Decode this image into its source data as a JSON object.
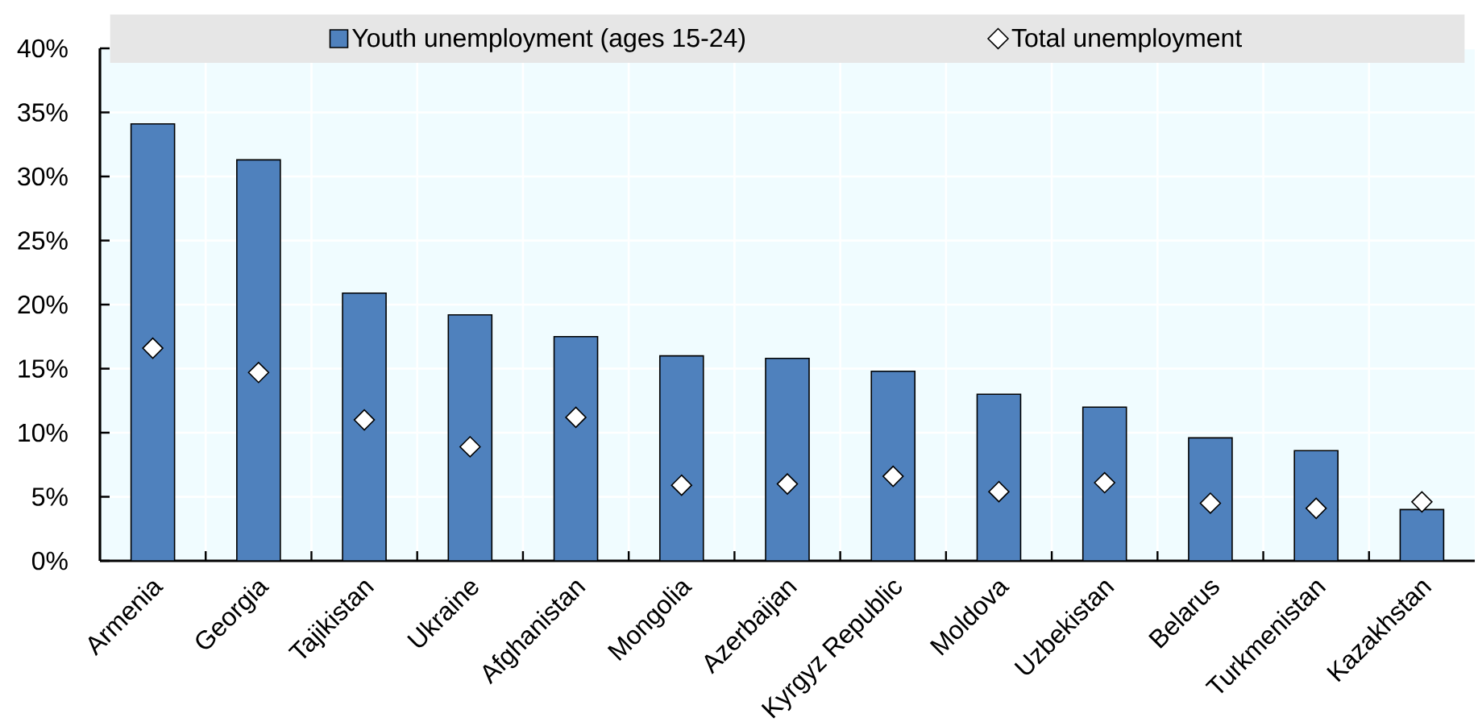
{
  "chart_data": {
    "type": "bar",
    "categories": [
      "Armenia",
      "Georgia",
      "Tajikistan",
      "Ukraine",
      "Afghanistan",
      "Mongolia",
      "Azerbaijan",
      "Kyrgyz Republic",
      "Moldova",
      "Uzbekistan",
      "Belarus",
      "Turkmenistan",
      "Kazakhstan"
    ],
    "series": [
      {
        "name": "Youth unemployment (ages 15-24)",
        "color": "#4f81bd",
        "values": [
          34.1,
          31.3,
          20.9,
          19.2,
          17.5,
          16.0,
          15.8,
          14.8,
          13.0,
          12.0,
          9.6,
          8.6,
          4.0
        ]
      },
      {
        "name": "Total unemployment",
        "type": "scatter",
        "marker": "diamond",
        "color": "#ffffff",
        "values": [
          16.6,
          14.7,
          11.0,
          8.9,
          11.2,
          5.9,
          6.0,
          6.6,
          5.4,
          6.1,
          4.5,
          4.1,
          4.6
        ]
      }
    ],
    "ylim": [
      0,
      40
    ],
    "yticks": [
      {
        "value": 0,
        "label": "0%"
      },
      {
        "value": 5,
        "label": "5%"
      },
      {
        "value": 10,
        "label": "10%"
      },
      {
        "value": 15,
        "label": "15%"
      },
      {
        "value": 20,
        "label": "20%"
      },
      {
        "value": 25,
        "label": "25%"
      },
      {
        "value": 30,
        "label": "30%"
      },
      {
        "value": 35,
        "label": "35%"
      },
      {
        "value": 40,
        "label": "40%"
      }
    ],
    "grid": true,
    "legend": "top"
  }
}
